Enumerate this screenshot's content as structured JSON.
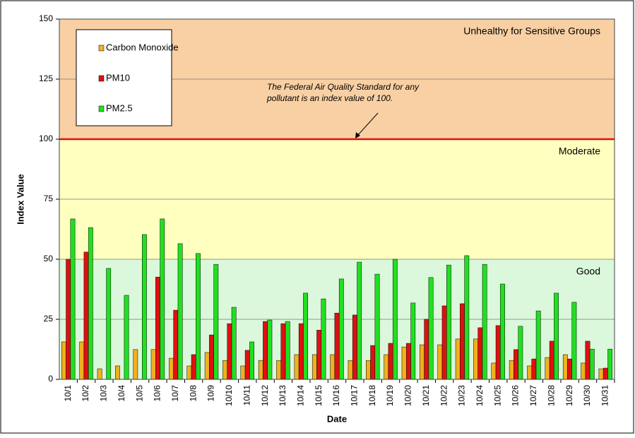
{
  "chart_data": {
    "type": "bar",
    "x_label": "Date",
    "y_label": "Index Value",
    "categories": [
      "10/1",
      "10/2",
      "10/3",
      "10/4",
      "10/5",
      "10/6",
      "10/7",
      "10/8",
      "10/9",
      "10/10",
      "10/11",
      "10/12",
      "10/13",
      "10/14",
      "10/15",
      "10/16",
      "10/17",
      "10/18",
      "10/19",
      "10/20",
      "10/21",
      "10/22",
      "10/23",
      "10/24",
      "10/25",
      "10/26",
      "10/27",
      "10/28",
      "10/29",
      "10/30",
      "10/31"
    ],
    "series": [
      {
        "name": "Carbon Monoxide",
        "color": "#f0b020",
        "values": [
          15.6,
          15.6,
          4.4,
          5.6,
          12.4,
          12.4,
          8.8,
          5.6,
          11.2,
          7.9,
          5.6,
          7.9,
          7.9,
          10.3,
          10.3,
          10.3,
          7.9,
          7.9,
          10.3,
          13.5,
          14.4,
          14.4,
          16.8,
          16.8,
          6.8,
          7.9,
          5.6,
          9.1,
          10.3,
          6.8,
          4.4
        ]
      },
      {
        "name": "PM10",
        "color": "#e01010",
        "values": [
          50,
          53,
          null,
          null,
          null,
          42.6,
          28.8,
          10.3,
          18.5,
          23.2,
          12.1,
          24.1,
          23.2,
          23.2,
          20.5,
          27.6,
          26.8,
          14.1,
          15,
          15,
          25,
          30.6,
          31.5,
          21.5,
          22.4,
          12.4,
          8.5,
          15.9,
          8.5,
          15.9,
          4.7
        ]
      },
      {
        "name": "PM2.5",
        "color": "#20e020",
        "values": [
          66.8,
          63.2,
          46.2,
          35,
          60.3,
          66.8,
          56.5,
          52.4,
          47.9,
          30,
          15.6,
          24.7,
          24.1,
          35.9,
          33.5,
          41.8,
          48.8,
          43.8,
          50,
          31.8,
          42.4,
          47.6,
          51.5,
          47.9,
          39.7,
          22.1,
          28.5,
          35.9,
          32.1,
          12.6,
          12.6
        ]
      }
    ],
    "ylim": [
      0,
      150
    ],
    "yticks": [
      0,
      25,
      50,
      75,
      100,
      125,
      150
    ],
    "grid": true,
    "bands": [
      {
        "label": "Good",
        "from": 0,
        "to": 50,
        "color": "#dcf8dc",
        "label_color": "#1a9a1a"
      },
      {
        "label": "Moderate",
        "from": 50,
        "to": 100,
        "color": "#ffffc0",
        "label_color": "#e8c000"
      },
      {
        "label": "Unhealthy for Sensitive Groups",
        "from": 100,
        "to": 150,
        "color": "#f8d0a4",
        "label_color": "#ee2020"
      }
    ],
    "reference_line": {
      "value": 100,
      "color": "#e01010"
    },
    "annotation": [
      "The Federal Air Quality Standard for any",
      "pollutant is an index value of 100."
    ],
    "legend": "top-left"
  }
}
